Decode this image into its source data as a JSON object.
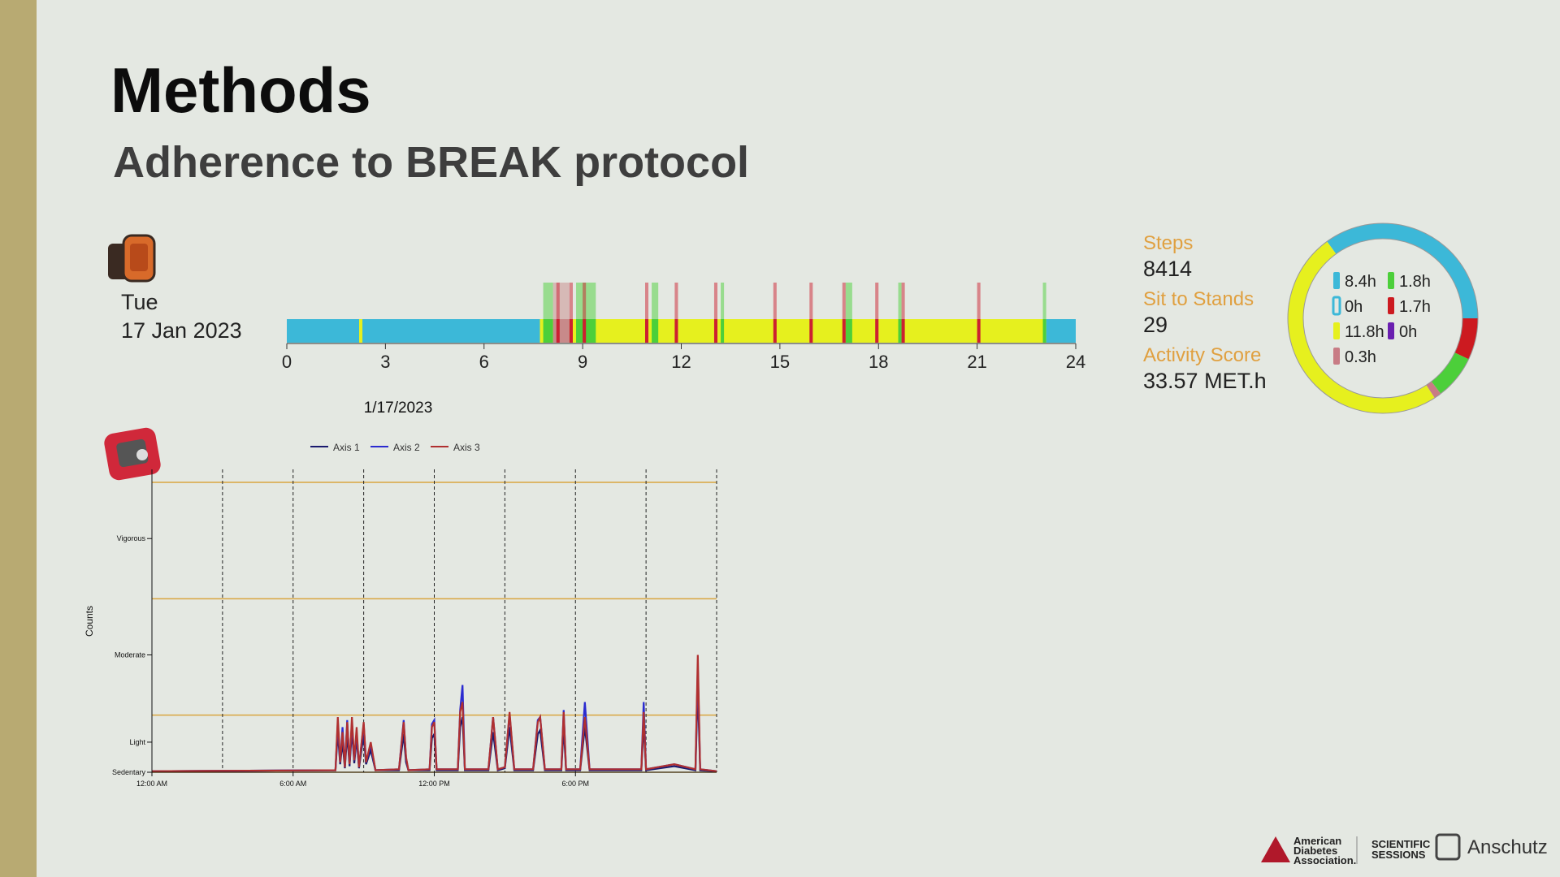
{
  "slide": {
    "title": "Methods",
    "subtitle": "Adherence to BREAK protocol",
    "day": "Tue",
    "date": "17 Jan 2023",
    "stats": [
      {
        "label": "Steps",
        "value": 8414
      },
      {
        "label": "Sit to Stands",
        "value": 29
      },
      {
        "label": "Activity Score",
        "value": "33.57 MET.h"
      }
    ],
    "footer": {
      "org": [
        "American",
        "Diabetes",
        "Association."
      ],
      "event": [
        "SCIENTIFIC",
        "SESSIONS"
      ],
      "school": "Anschutz"
    }
  },
  "chart_data": [
    {
      "type": "timeline",
      "xlim": [
        0,
        24
      ],
      "xticks": [
        0,
        3,
        6,
        9,
        12,
        15,
        18,
        21,
        24
      ],
      "series": [
        {
          "color": "#3cb8d8",
          "intervals": [
            [
              0,
              7.7
            ],
            [
              23.1,
              24
            ]
          ]
        },
        {
          "color": "#e6f01e",
          "intervals": [
            [
              2.2,
              2.3
            ],
            [
              7.7,
              23.1
            ]
          ]
        },
        {
          "color": "#4ccf3a",
          "intervals": [
            [
              7.8,
              8.1
            ],
            [
              8.8,
              9.4
            ],
            [
              11.1,
              11.3
            ],
            [
              13.2,
              13.3
            ],
            [
              17.0,
              17.2
            ],
            [
              18.6,
              18.7
            ],
            [
              23.0,
              23.1
            ]
          ]
        },
        {
          "color": "#c88a8a",
          "intervals": [
            [
              8.1,
              8.6
            ]
          ]
        },
        {
          "color": "#cc2030",
          "intervals": [
            [
              8.2,
              8.3
            ],
            [
              8.6,
              8.7
            ],
            [
              9.0,
              9.1
            ],
            [
              10.9,
              11.0
            ],
            [
              11.8,
              11.9
            ],
            [
              13.0,
              13.1
            ],
            [
              14.8,
              14.9
            ],
            [
              15.9,
              16.0
            ],
            [
              16.9,
              17.0
            ],
            [
              17.9,
              18.0
            ],
            [
              18.7,
              18.8
            ],
            [
              21.0,
              21.1
            ]
          ]
        }
      ]
    },
    {
      "type": "pie",
      "values": [
        8.4,
        0,
        1.7,
        1.8,
        0.3,
        11.8,
        0
      ],
      "value_labels": [
        "8.4h",
        "0h",
        "1.7h",
        "1.8h",
        "0.3h",
        "11.8h",
        "0h"
      ],
      "colors": [
        "#3cb8d8",
        "#3cb8d8",
        "#cc1a20",
        "#4ccf3a",
        "#c87c85",
        "#e6f01e",
        "#6a1fb0"
      ],
      "swatch": [
        "solid",
        "outline",
        "solid",
        "solid",
        "solid",
        "solid",
        "solid"
      ]
    },
    {
      "type": "line",
      "title": "1/17/2023",
      "ylabel": "Counts",
      "x": [
        0,
        7.8,
        7.9,
        8.0,
        8.1,
        8.2,
        8.3,
        8.4,
        8.5,
        8.6,
        8.7,
        8.8,
        9.0,
        9.1,
        9.3,
        9.5,
        10.5,
        10.7,
        10.8,
        10.9,
        11.8,
        11.9,
        12.0,
        12.1,
        13.0,
        13.1,
        13.2,
        13.3,
        14.3,
        14.5,
        14.7,
        15.0,
        15.2,
        15.4,
        16.2,
        16.4,
        16.5,
        16.7,
        17.4,
        17.5,
        17.6,
        18.2,
        18.4,
        18.6,
        20.8,
        20.9,
        21.0,
        22.2,
        23.1,
        23.2,
        23.3,
        24
      ],
      "series": [
        {
          "name": "Axis 1",
          "color": "#1a1a6e",
          "values": [
            1,
            2,
            40,
            8,
            30,
            4,
            38,
            6,
            42,
            9,
            34,
            4,
            38,
            8,
            22,
            2,
            2,
            38,
            10,
            2,
            2,
            34,
            38,
            2,
            2,
            45,
            55,
            2,
            2,
            40,
            2,
            4,
            45,
            2,
            2,
            38,
            42,
            2,
            2,
            45,
            2,
            2,
            45,
            2,
            2,
            48,
            2,
            6,
            2,
            85,
            2,
            1
          ]
        },
        {
          "name": "Axis 2",
          "color": "#2b2bd0",
          "values": [
            1,
            2,
            50,
            10,
            45,
            5,
            52,
            8,
            50,
            12,
            40,
            5,
            48,
            10,
            28,
            2,
            3,
            52,
            14,
            2,
            3,
            48,
            52,
            3,
            3,
            62,
            87,
            3,
            3,
            55,
            3,
            5,
            58,
            3,
            3,
            52,
            55,
            3,
            3,
            62,
            3,
            3,
            70,
            3,
            3,
            70,
            3,
            8,
            3,
            105,
            3,
            1
          ]
        },
        {
          "name": "Axis 3",
          "color": "#b03030",
          "values": [
            1,
            2,
            55,
            10,
            40,
            5,
            50,
            8,
            55,
            12,
            45,
            5,
            50,
            10,
            30,
            2,
            3,
            50,
            15,
            2,
            3,
            45,
            50,
            3,
            3,
            60,
            70,
            3,
            3,
            55,
            3,
            5,
            60,
            3,
            3,
            50,
            55,
            3,
            3,
            60,
            3,
            3,
            55,
            3,
            3,
            60,
            3,
            8,
            3,
            117,
            3,
            1
          ]
        }
      ],
      "xlim": [
        0,
        24
      ],
      "xticks": [
        {
          "value": 0,
          "label": "12:00 AM"
        },
        {
          "value": 6,
          "label": "6:00 AM"
        },
        {
          "value": 12,
          "label": "12:00 PM"
        },
        {
          "value": 18,
          "label": "6:00 PM"
        }
      ],
      "xgrid": [
        3,
        6,
        9,
        12,
        15,
        18,
        21,
        24
      ],
      "ylim": [
        0,
        302
      ],
      "yticks": [
        {
          "value": 0,
          "label": "Sedentary"
        },
        {
          "value": 30,
          "label": "Light"
        },
        {
          "value": 117,
          "label": "Moderate"
        },
        {
          "value": 233,
          "label": "Vigorous"
        }
      ],
      "ref_lines": [
        0,
        57,
        173,
        289
      ]
    }
  ]
}
